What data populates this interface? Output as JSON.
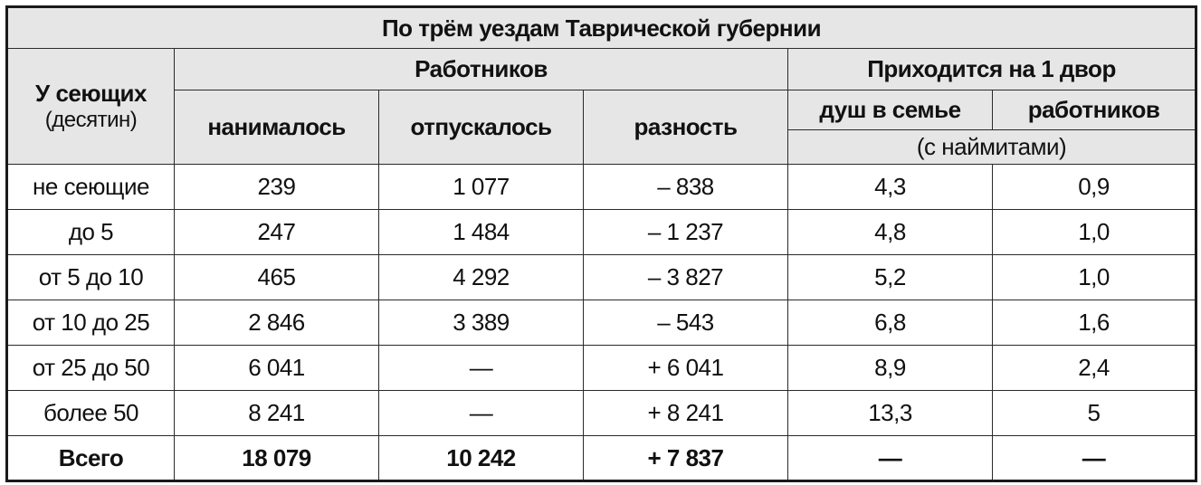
{
  "table": {
    "title": "По трём уездам Таврической губернии",
    "headers": {
      "group_label": "У сеющих",
      "group_unit": "(десятин)",
      "workers": "Работников",
      "per_household": "Приходится на 1 двор",
      "hired": "нанималось",
      "released": "отпускалось",
      "difference": "разность",
      "souls_in_family": "душ в семье",
      "workers_per_household": "работников",
      "with_hired_note": "(с наймитами)"
    },
    "rows": [
      {
        "group": "не сеющие",
        "hired": "239",
        "released": "1 077",
        "difference": "– 838",
        "souls": "4,3",
        "workers": "0,9"
      },
      {
        "group": "до 5",
        "hired": "247",
        "released": "1 484",
        "difference": "– 1 237",
        "souls": "4,8",
        "workers": "1,0"
      },
      {
        "group": "от 5 до 10",
        "hired": "465",
        "released": "4 292",
        "difference": "– 3 827",
        "souls": "5,2",
        "workers": "1,0"
      },
      {
        "group": "от 10 до 25",
        "hired": "2 846",
        "released": "3 389",
        "difference": "– 543",
        "souls": "6,8",
        "workers": "1,6"
      },
      {
        "group": "от 25 до 50",
        "hired": "6 041",
        "released": "—",
        "difference": "+ 6 041",
        "souls": "8,9",
        "workers": "2,4"
      },
      {
        "group": "более 50",
        "hired": "8 241",
        "released": "—",
        "difference": "+ 8 241",
        "souls": "13,3",
        "workers": "5"
      }
    ],
    "total": {
      "group": "Всего",
      "hired": "18 079",
      "released": "10 242",
      "difference": "+ 7 837",
      "souls": "—",
      "workers": "—"
    }
  }
}
